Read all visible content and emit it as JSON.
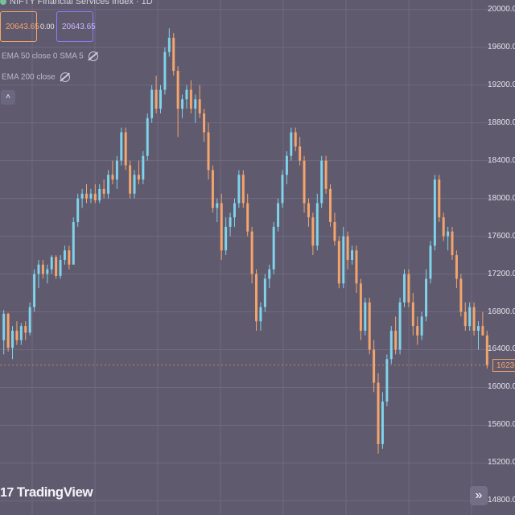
{
  "header": {
    "title": "NIFTY Financial Services Index · 1D · NSE",
    "bid_price": "20643.65",
    "spread": "0.00",
    "ask_price": "20643.65"
  },
  "legend": {
    "ema_row": "EMA 50 close 0 SMA 5",
    "ema200_row": "EMA 200 close"
  },
  "controls": {
    "collapse_icon": "chevron-up-icon",
    "scroll_icon": "double-chevron-right-icon",
    "scroll_glyph": "»",
    "collapse_glyph": "˄"
  },
  "watermark": {
    "text": "TradingView",
    "logo_glyph": "17"
  },
  "price_axis": {
    "labels": [
      "20000.00",
      "19600.00",
      "19200.00",
      "18800.00",
      "18400.00",
      "18000.00",
      "17600.00",
      "17200.00",
      "16800.00",
      "16400.00",
      "16000.00",
      "15600.00",
      "15200.00",
      "14800.00"
    ],
    "last_price": "16236",
    "ylim": [
      14650,
      20100
    ]
  },
  "colors": {
    "background": "#5f5a6e",
    "up": "#7fd3ea",
    "down": "#f5a56b",
    "grid": "#6f6a80",
    "last_price": "#f5a56b"
  },
  "chart_data": {
    "type": "candlestick",
    "ylim": [
      14650,
      20100
    ],
    "candles": [
      [
        16500,
        16820,
        16350,
        16780
      ],
      [
        16780,
        16790,
        16380,
        16420
      ],
      [
        16420,
        16650,
        16300,
        16600
      ],
      [
        16600,
        16700,
        16450,
        16500
      ],
      [
        16500,
        16680,
        16450,
        16650
      ],
      [
        16650,
        16700,
        16500,
        16580
      ],
      [
        16580,
        16900,
        16550,
        16850
      ],
      [
        16850,
        17250,
        16800,
        17200
      ],
      [
        17200,
        17350,
        17050,
        17300
      ],
      [
        17300,
        17350,
        17150,
        17200
      ],
      [
        17200,
        17300,
        17100,
        17250
      ],
      [
        17250,
        17400,
        17200,
        17380
      ],
      [
        17380,
        17400,
        17150,
        17180
      ],
      [
        17180,
        17400,
        17150,
        17350
      ],
      [
        17350,
        17500,
        17300,
        17450
      ],
      [
        17450,
        17500,
        17250,
        17300
      ],
      [
        17300,
        17800,
        17300,
        17750
      ],
      [
        17750,
        18050,
        17700,
        18000
      ],
      [
        18000,
        18100,
        17900,
        18050
      ],
      [
        18050,
        18150,
        17950,
        18000
      ],
      [
        18000,
        18100,
        17950,
        18050
      ],
      [
        18050,
        18150,
        17950,
        17980
      ],
      [
        17980,
        18150,
        17950,
        18100
      ],
      [
        18100,
        18200,
        18000,
        18050
      ],
      [
        18050,
        18300,
        18000,
        18250
      ],
      [
        18250,
        18400,
        18150,
        18200
      ],
      [
        18200,
        18450,
        18100,
        18400
      ],
      [
        18400,
        18750,
        18350,
        18700
      ],
      [
        18700,
        18750,
        18300,
        18350
      ],
      [
        18350,
        18400,
        18000,
        18050
      ],
      [
        18050,
        18300,
        18000,
        18250
      ],
      [
        18250,
        18400,
        18150,
        18200
      ],
      [
        18200,
        18500,
        18150,
        18450
      ],
      [
        18450,
        18900,
        18400,
        18850
      ],
      [
        18850,
        19200,
        18800,
        19150
      ],
      [
        19150,
        19300,
        18900,
        18950
      ],
      [
        18950,
        19200,
        18900,
        19150
      ],
      [
        19150,
        19600,
        19100,
        19550
      ],
      [
        19550,
        19800,
        19500,
        19700
      ],
      [
        19700,
        19750,
        19300,
        19350
      ],
      [
        19350,
        19400,
        18650,
        18950
      ],
      [
        18950,
        19100,
        18850,
        19050
      ],
      [
        19050,
        19200,
        18950,
        19150
      ],
      [
        19150,
        19250,
        18900,
        18950
      ],
      [
        18950,
        19100,
        18800,
        19050
      ],
      [
        19050,
        19200,
        18850,
        18900
      ],
      [
        18900,
        18950,
        18600,
        18700
      ],
      [
        18700,
        18800,
        18200,
        18300
      ],
      [
        18300,
        18350,
        17850,
        17900
      ],
      [
        17900,
        18000,
        17750,
        17950
      ],
      [
        17950,
        18050,
        17350,
        17450
      ],
      [
        17450,
        17800,
        17400,
        17700
      ],
      [
        17700,
        17850,
        17600,
        17800
      ],
      [
        17800,
        18000,
        17700,
        17950
      ],
      [
        17950,
        18300,
        17900,
        18250
      ],
      [
        18250,
        18300,
        17900,
        17950
      ],
      [
        17950,
        18050,
        17600,
        17650
      ],
      [
        17650,
        17700,
        17100,
        17200
      ],
      [
        17200,
        17250,
        16600,
        16700
      ],
      [
        16700,
        16900,
        16600,
        16850
      ],
      [
        16850,
        17200,
        16800,
        17150
      ],
      [
        17150,
        17300,
        17050,
        17250
      ],
      [
        17250,
        17750,
        17200,
        17700
      ],
      [
        17700,
        18000,
        17650,
        17950
      ],
      [
        17950,
        18300,
        17900,
        18250
      ],
      [
        18250,
        18500,
        18150,
        18450
      ],
      [
        18450,
        18750,
        18400,
        18700
      ],
      [
        18700,
        18750,
        18500,
        18550
      ],
      [
        18550,
        18650,
        18350,
        18400
      ],
      [
        18400,
        18450,
        17850,
        17950
      ],
      [
        17950,
        18000,
        17700,
        17800
      ],
      [
        17800,
        17850,
        17400,
        17500
      ],
      [
        17500,
        18050,
        17450,
        17950
      ],
      [
        17950,
        18450,
        17900,
        18400
      ],
      [
        18400,
        18450,
        18050,
        18100
      ],
      [
        18100,
        18150,
        17700,
        17750
      ],
      [
        17750,
        17850,
        17500,
        17550
      ],
      [
        17550,
        17600,
        17050,
        17100
      ],
      [
        17100,
        17700,
        17050,
        17600
      ],
      [
        17600,
        17650,
        17250,
        17350
      ],
      [
        17350,
        17500,
        17300,
        17450
      ],
      [
        17450,
        17500,
        17000,
        17100
      ],
      [
        17100,
        17150,
        16500,
        16600
      ],
      [
        16600,
        16950,
        16550,
        16900
      ],
      [
        16900,
        16950,
        16350,
        16400
      ],
      [
        16400,
        16500,
        15950,
        16050
      ],
      [
        16050,
        16150,
        15300,
        15400
      ],
      [
        15400,
        15950,
        15350,
        15850
      ],
      [
        15850,
        16350,
        15800,
        16300
      ],
      [
        16300,
        16650,
        16250,
        16600
      ],
      [
        16600,
        16750,
        16350,
        16400
      ],
      [
        16400,
        16950,
        16350,
        16900
      ],
      [
        16900,
        17250,
        16850,
        17200
      ],
      [
        17200,
        17250,
        16850,
        16900
      ],
      [
        16900,
        17000,
        16550,
        16650
      ],
      [
        16650,
        16750,
        16450,
        16550
      ],
      [
        16550,
        16800,
        16500,
        16750
      ],
      [
        16750,
        17250,
        16700,
        17150
      ],
      [
        17150,
        17550,
        17100,
        17500
      ],
      [
        17500,
        18250,
        17450,
        18200
      ],
      [
        18200,
        18250,
        17750,
        17800
      ],
      [
        17800,
        17850,
        17550,
        17600
      ],
      [
        17600,
        17700,
        17450,
        17650
      ],
      [
        17650,
        17700,
        17350,
        17400
      ],
      [
        17400,
        17450,
        17050,
        17150
      ],
      [
        17150,
        17200,
        16750,
        16800
      ],
      [
        16800,
        16900,
        16600,
        16650
      ],
      [
        16650,
        16900,
        16600,
        16850
      ],
      [
        16850,
        16900,
        16550,
        16600
      ],
      [
        16600,
        16700,
        16400,
        16650
      ],
      [
        16650,
        16800,
        16550,
        16550
      ],
      [
        16550,
        16600,
        16200,
        16236
      ]
    ]
  }
}
